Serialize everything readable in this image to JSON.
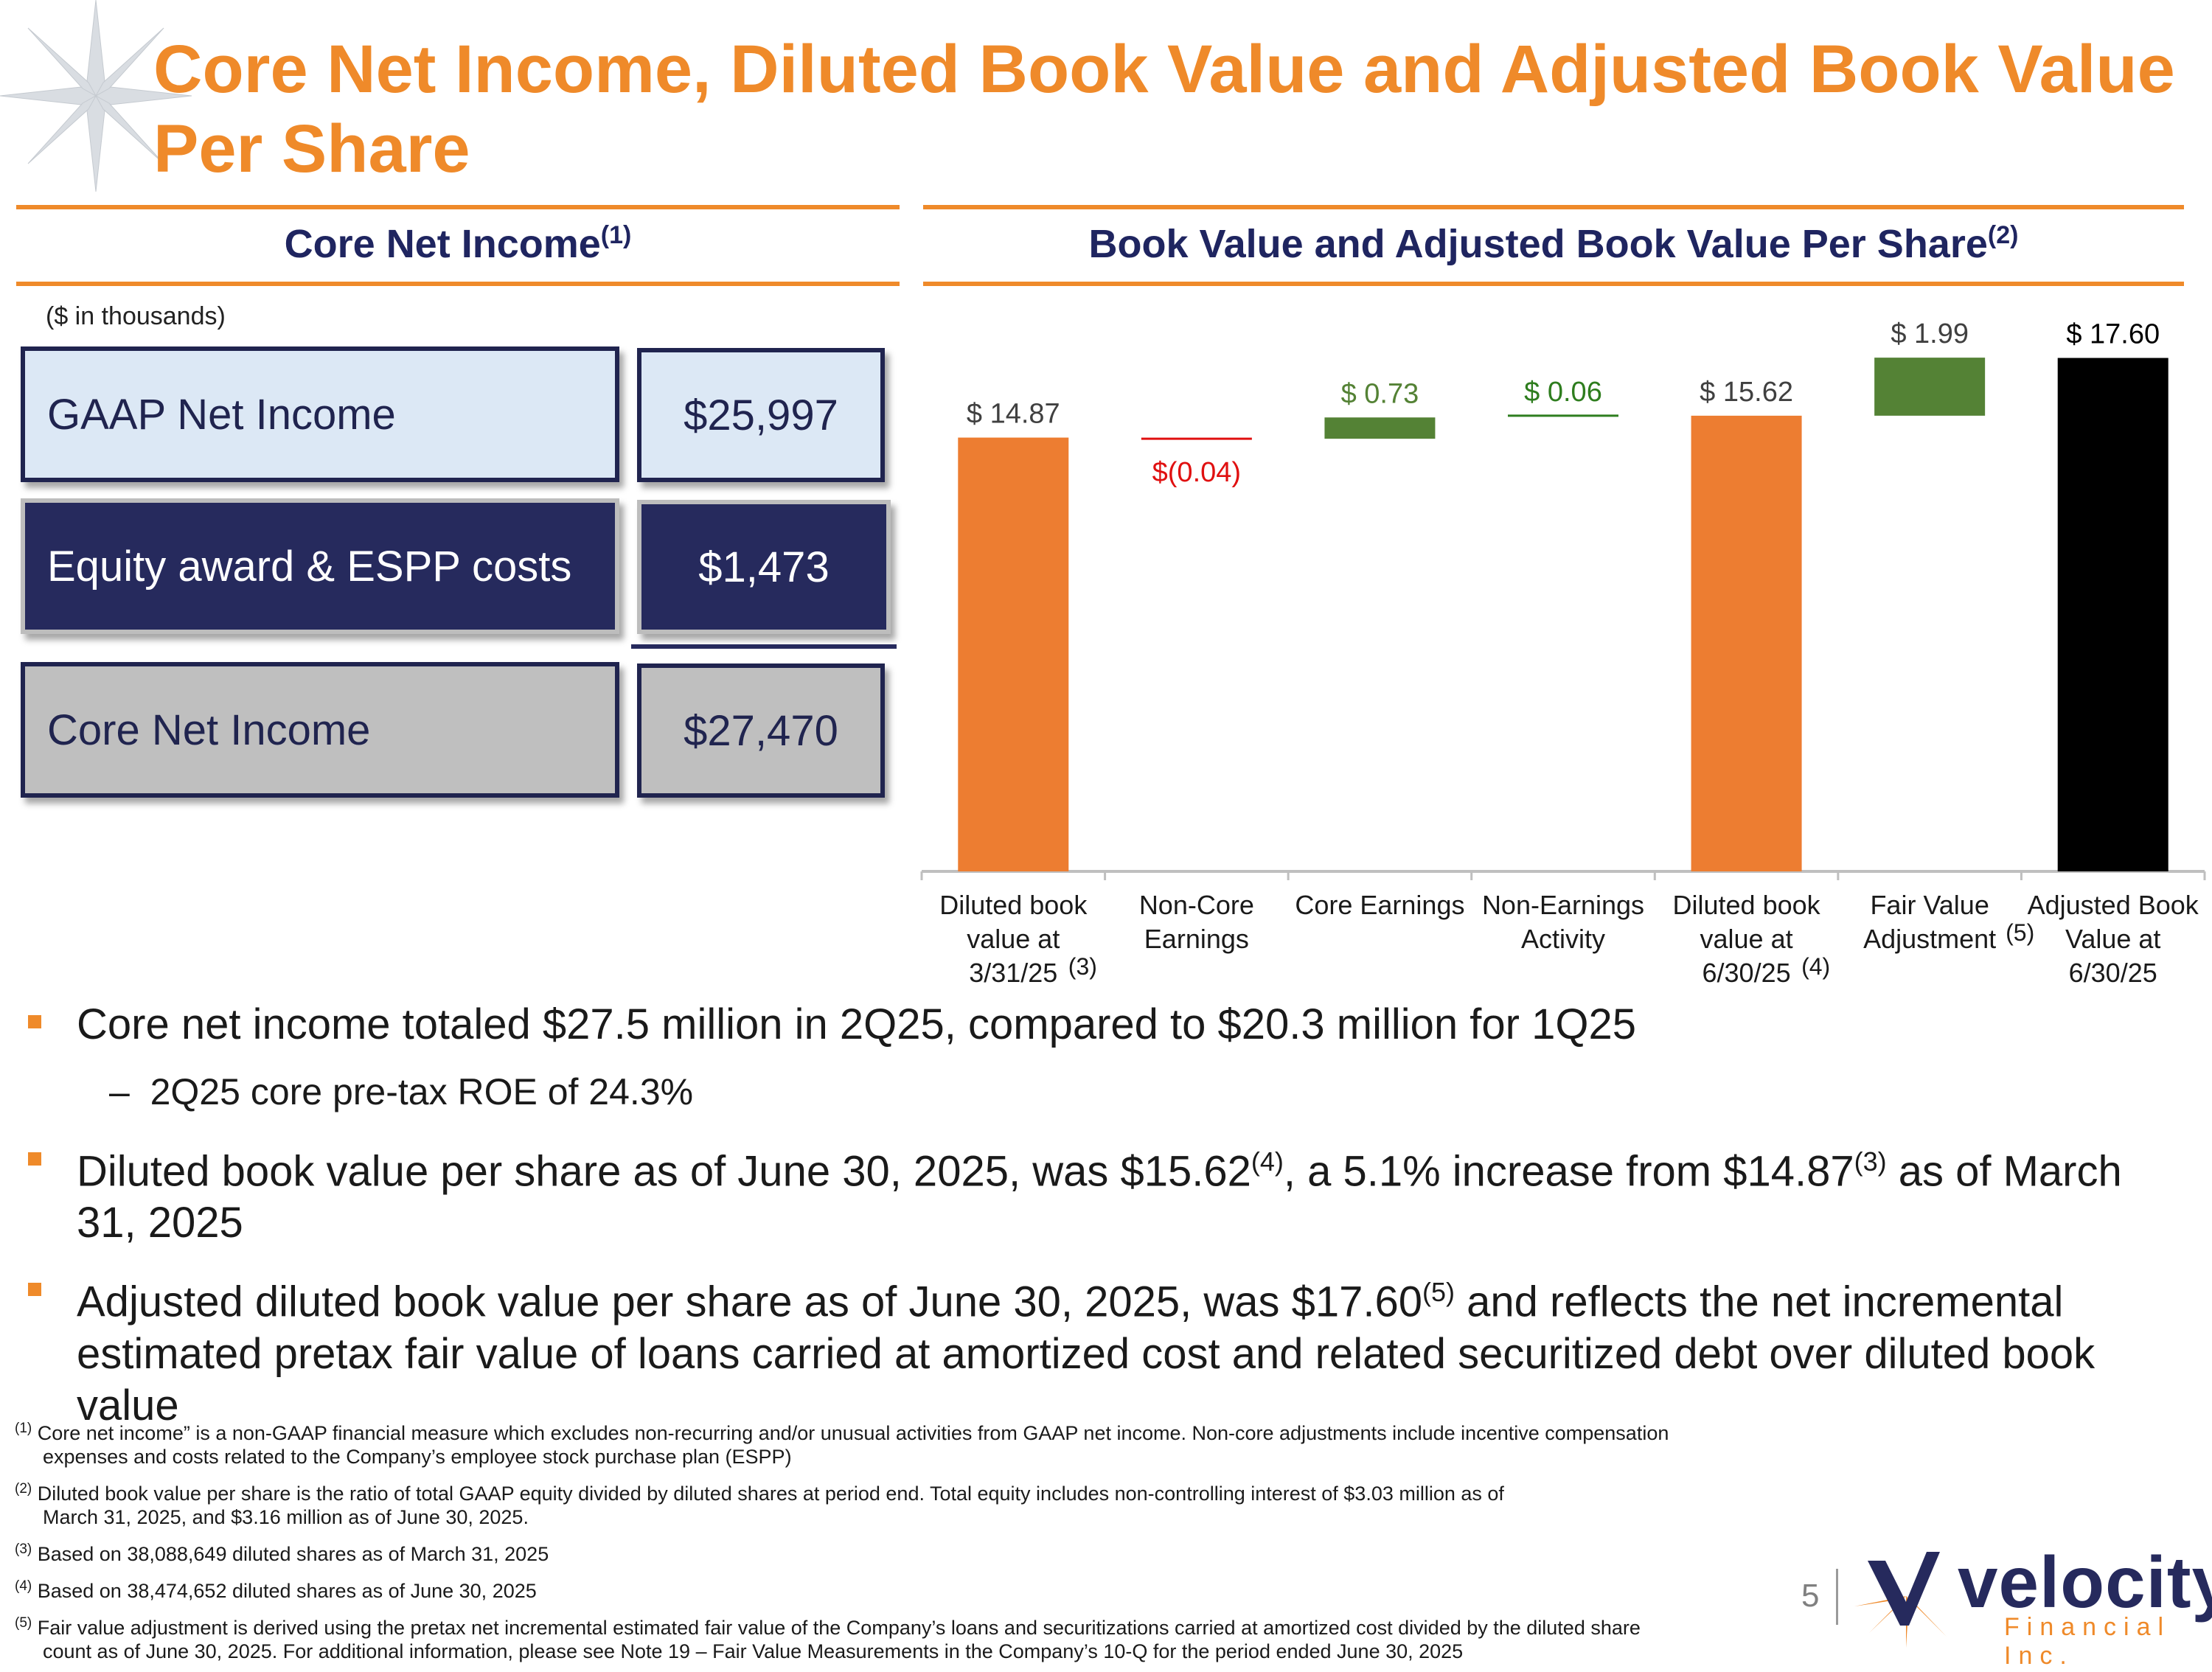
{
  "title": "Core Net Income, Diluted Book Value and Adjusted Book Value Per Share",
  "left_section": {
    "heading": "Core Net Income",
    "heading_note": "(1)",
    "units": "($ in thousands)",
    "rows": [
      {
        "label": "GAAP Net Income",
        "value": "$25,997"
      },
      {
        "label": "Equity award & ESPP costs",
        "value": "$1,473"
      },
      {
        "label": "Core Net Income",
        "value": "$27,470"
      }
    ]
  },
  "right_section": {
    "heading": "Book Value and Adjusted Book Value Per Share",
    "heading_note": "(2)"
  },
  "colors": {
    "accent": "#ef8a2a",
    "navy": "#262a5d",
    "green": "#548235",
    "red": "#e01010",
    "black": "#000000"
  },
  "chart_data": {
    "type": "bar",
    "subtype": "waterfall",
    "ylim": [
      0,
      18.7
    ],
    "categories": [
      {
        "lines": [
          "Diluted book",
          "value at",
          "3/31/25"
        ],
        "note": "(3)"
      },
      {
        "lines": [
          "Non-Core",
          "Earnings"
        ],
        "note": ""
      },
      {
        "lines": [
          "Core Earnings"
        ],
        "note": ""
      },
      {
        "lines": [
          "Non-Earnings",
          "Activity"
        ],
        "note": ""
      },
      {
        "lines": [
          "Diluted book",
          "value at",
          "6/30/25"
        ],
        "note": "(4)"
      },
      {
        "lines": [
          "Fair Value",
          "Adjustment"
        ],
        "note": "(5)"
      },
      {
        "lines": [
          "Adjusted Book",
          "Value at",
          "6/30/25"
        ],
        "note": ""
      }
    ],
    "bars": [
      {
        "start": 0,
        "end": 14.87,
        "label": "$ 14.87",
        "kind": "total",
        "color": "#ed7d31",
        "label_color": "#404040"
      },
      {
        "start": 14.87,
        "end": 14.83,
        "label": "$(0.04)",
        "kind": "line",
        "color": "#e01010",
        "label_color": "#e01010"
      },
      {
        "start": 14.83,
        "end": 15.56,
        "label": "$ 0.73",
        "kind": "delta",
        "color": "#548235",
        "label_color": "#548235"
      },
      {
        "start": 15.56,
        "end": 15.62,
        "label": "$ 0.06",
        "kind": "line",
        "color": "#2e7d1e",
        "label_color": "#2e7d1e"
      },
      {
        "start": 0,
        "end": 15.62,
        "label": "$ 15.62",
        "kind": "total",
        "color": "#ed7d31",
        "label_color": "#404040"
      },
      {
        "start": 15.62,
        "end": 17.61,
        "label": "$ 1.99",
        "kind": "delta",
        "color": "#548235",
        "label_color": "#404040"
      },
      {
        "start": 0,
        "end": 17.6,
        "label": "$ 17.60",
        "kind": "total",
        "color": "#000000",
        "label_color": "#000000"
      }
    ]
  },
  "bullets": [
    {
      "text": "Core net income totaled $27.5 million in 2Q25, compared to $20.3 million for 1Q25",
      "sub": "2Q25 core pre-tax ROE of 24.3%",
      "sub_dash": "–"
    },
    {
      "p1": "Diluted book value per share as of June 30, 2025, was $15.62",
      "s1": "(4)",
      "p2": ", a 5.1% increase from $14.87",
      "s2": "(3)",
      "p3": " as of March 31, 2025"
    },
    {
      "p1": "Adjusted diluted book value per share as of June 30, 2025, was $17.60",
      "s1": "(5)",
      "p2": " and reflects the net incremental estimated pretax fair value of loans carried at amortized cost and related securitized debt over diluted book value"
    }
  ],
  "footnotes": [
    {
      "mark": "(1)",
      "line1": " Core net income” is a non-GAAP financial measure which excludes non-recurring and/or unusual activities from GAAP net income. Non-core adjustments include incentive compensation",
      "line2": "expenses and costs related to the Company’s employee stock purchase plan (ESPP)"
    },
    {
      "mark": "(2)",
      "line1": " Diluted book value per share is the ratio of total GAAP equity divided by diluted shares at period end. Total equity includes non-controlling interest of $3.03 million as of",
      "line2": "March 31, 2025, and $3.16 million as of June 30, 2025."
    },
    {
      "mark": "(3)",
      "line1": " Based on 38,088,649 diluted shares as of March 31, 2025",
      "line2": ""
    },
    {
      "mark": "(4)",
      "line1": " Based on 38,474,652 diluted shares as of June 30, 2025",
      "line2": ""
    },
    {
      "mark": "(5)",
      "line1": " Fair value adjustment is derived using the pretax net incremental  estimated fair value of the Company’s loans and securitizations carried at amortized cost divided by the diluted share",
      "line2": "count as of June 30, 2025. For additional information, please see Note 19 – Fair Value Measurements in the Company’s 10-Q for the period ended June 30, 2025"
    }
  ],
  "page_number": "5",
  "logo": {
    "name": "velocity",
    "sub": "Financial Inc."
  }
}
